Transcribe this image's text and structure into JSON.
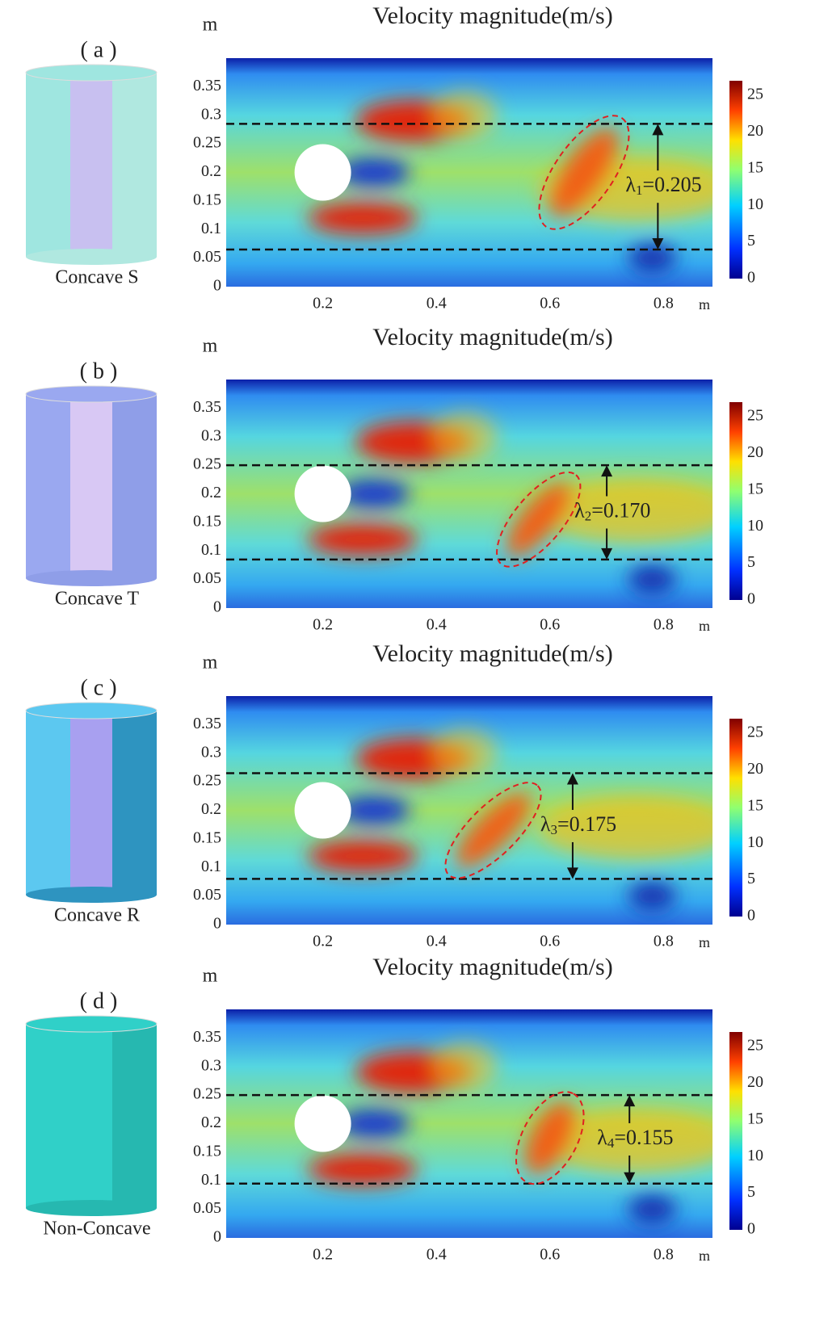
{
  "title": "Velocity magnitude(m/s)",
  "axis_unit": "m",
  "yticks": [
    0,
    0.05,
    0.1,
    0.15,
    0.2,
    0.25,
    0.3,
    0.35
  ],
  "xticks": [
    0.2,
    0.4,
    0.6,
    0.8
  ],
  "colorbar_ticks": [
    0,
    5,
    10,
    15,
    20,
    25
  ],
  "panels": [
    {
      "label": "( a )",
      "name": "Concave S",
      "dashed_lines": [
        0.285,
        0.065
      ],
      "lambda": {
        "symbol": "λ",
        "sub": "1",
        "text": "=0.205"
      }
    },
    {
      "label": "( b )",
      "name": "Concave T",
      "dashed_lines": [
        0.25,
        0.085
      ],
      "lambda": {
        "symbol": "λ",
        "sub": "2",
        "text": "=0.170"
      }
    },
    {
      "label": "( c )",
      "name": "Concave R",
      "dashed_lines": [
        0.265,
        0.08
      ],
      "lambda": {
        "symbol": "λ",
        "sub": "3",
        "text": "=0.175"
      }
    },
    {
      "label": "( d )",
      "name": "Non-Concave",
      "dashed_lines": [
        0.25,
        0.095
      ],
      "lambda": {
        "symbol": "λ",
        "sub": "4",
        "text": "=0.155"
      }
    }
  ]
}
